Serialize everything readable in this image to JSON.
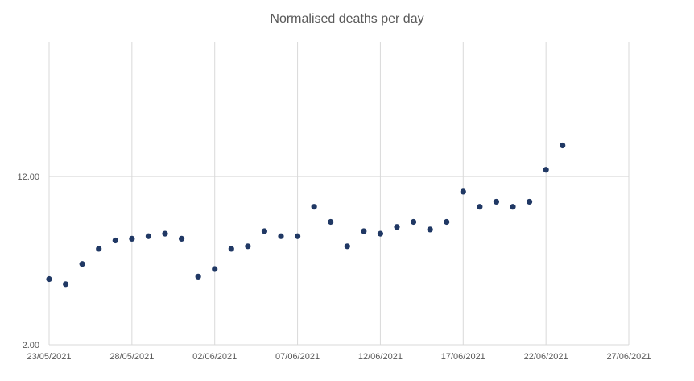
{
  "chart_data": {
    "type": "scatter",
    "title": "Normalised deaths per day",
    "xlabel": "",
    "ylabel": "",
    "x_tick_labels": [
      "23/05/2021",
      "28/05/2021",
      "02/06/2021",
      "07/06/2021",
      "12/06/2021",
      "17/06/2021",
      "22/06/2021",
      "27/06/2021"
    ],
    "x_tick_days": [
      0,
      5,
      10,
      15,
      20,
      25,
      30,
      35
    ],
    "y_tick_labels": [
      "2.00",
      "12.00"
    ],
    "y_tick_values": [
      2,
      12
    ],
    "xlim_days": [
      0,
      35
    ],
    "ylim": [
      2,
      20
    ],
    "grid": true,
    "legend": "none",
    "series": [
      {
        "name": "Normalised deaths",
        "color": "#203864",
        "x_days": [
          0,
          1,
          2,
          3,
          4,
          5,
          6,
          7,
          8,
          9,
          10,
          11,
          12,
          13,
          14,
          15,
          16,
          17,
          18,
          19,
          20,
          21,
          22,
          23,
          24,
          25,
          26,
          27,
          28,
          29,
          30,
          31
        ],
        "values": [
          5.9,
          5.6,
          6.8,
          7.7,
          8.2,
          8.3,
          8.45,
          8.6,
          8.3,
          6.05,
          6.5,
          7.7,
          7.85,
          8.75,
          8.45,
          8.45,
          10.2,
          9.3,
          7.85,
          8.75,
          8.6,
          9.0,
          9.3,
          8.85,
          9.3,
          11.1,
          10.2,
          10.5,
          10.2,
          10.5,
          12.4,
          13.85
        ]
      }
    ]
  }
}
